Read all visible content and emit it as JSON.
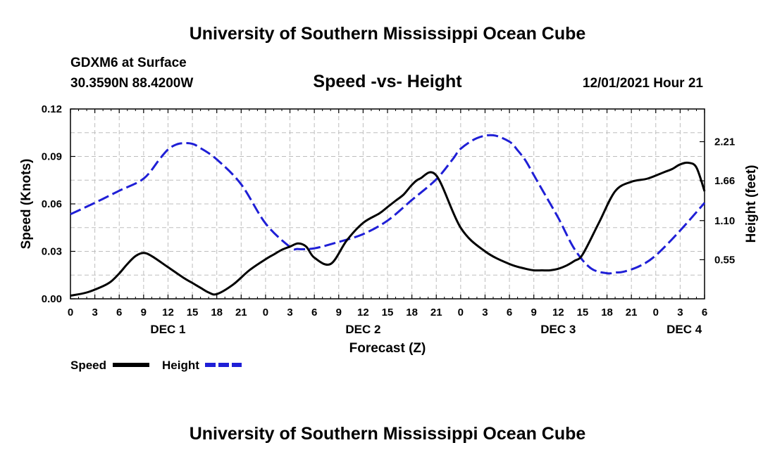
{
  "chart_data": {
    "type": "line",
    "title": "University of Southern Mississippi Ocean Cube",
    "subtitle": "Speed -vs- Height",
    "station": "GDXM6 at Surface",
    "location": "30.3590N  88.4200W",
    "datetime": "12/01/2021 Hour 21",
    "footer_title": "University of Southern Mississippi Ocean Cube",
    "xlabel": "Forecast (Z)",
    "ylabel_left": "Speed (Knots)",
    "ylabel_right": "Height (feet)",
    "xlim": [
      0,
      78
    ],
    "ylim_left": [
      0,
      0.12
    ],
    "ylim_right": [
      0,
      2.67
    ],
    "grid": true,
    "x_tick_labels": [
      "0",
      "3",
      "6",
      "9",
      "12",
      "15",
      "18",
      "21",
      "0",
      "3",
      "6",
      "9",
      "12",
      "15",
      "18",
      "21",
      "0",
      "3",
      "6",
      "9",
      "12",
      "15",
      "18",
      "21",
      "0",
      "3",
      "6"
    ],
    "y_left_ticks": [
      {
        "value": 0,
        "label": "0.00"
      },
      {
        "value": 0.03,
        "label": "0.03"
      },
      {
        "value": 0.06,
        "label": "0.06"
      },
      {
        "value": 0.09,
        "label": "0.09"
      },
      {
        "value": 0.12,
        "label": "0.12"
      }
    ],
    "y_right_ticks": [
      {
        "value": 0.55,
        "label": "0.55"
      },
      {
        "value": 1.1,
        "label": "1.10"
      },
      {
        "value": 1.66,
        "label": "1.66"
      },
      {
        "value": 2.21,
        "label": "2.21"
      }
    ],
    "day_labels": [
      {
        "label": "DEC 1",
        "x": 12
      },
      {
        "label": "DEC 2",
        "x": 36
      },
      {
        "label": "DEC 3",
        "x": 60
      },
      {
        "label": "DEC 4",
        "x": 75.5
      }
    ],
    "legend_position": "bottom-left",
    "series": [
      {
        "name": "Speed",
        "axis": "left",
        "color": "#000000",
        "style": "solid",
        "x": [
          0,
          2,
          4,
          5,
          6,
          7,
          8,
          9,
          10,
          12,
          14,
          15,
          16,
          17,
          18,
          20,
          22,
          24,
          25,
          26,
          27,
          28,
          29,
          30,
          32,
          34,
          36,
          38,
          39,
          40,
          41,
          42,
          43,
          45,
          48,
          51,
          54,
          56,
          57,
          58,
          59,
          60,
          61,
          62,
          63,
          65,
          67,
          69,
          71,
          73,
          74,
          75,
          76,
          77,
          78
        ],
        "values": [
          0.002,
          0.004,
          0.008,
          0.011,
          0.016,
          0.022,
          0.027,
          0.029,
          0.027,
          0.02,
          0.013,
          0.01,
          0.007,
          0.004,
          0.003,
          0.009,
          0.018,
          0.025,
          0.028,
          0.031,
          0.033,
          0.035,
          0.033,
          0.026,
          0.022,
          0.037,
          0.048,
          0.054,
          0.058,
          0.062,
          0.066,
          0.072,
          0.076,
          0.078,
          0.045,
          0.03,
          0.022,
          0.019,
          0.018,
          0.018,
          0.018,
          0.019,
          0.021,
          0.024,
          0.028,
          0.048,
          0.068,
          0.074,
          0.076,
          0.08,
          0.082,
          0.085,
          0.086,
          0.083,
          0.068
        ]
      },
      {
        "name": "Height",
        "axis": "right",
        "color": "#1f1fd6",
        "style": "dashed",
        "x": [
          0,
          3,
          6,
          9,
          11,
          12,
          13,
          14,
          15,
          16,
          18,
          21,
          24,
          27,
          28,
          30,
          33,
          36,
          39,
          42,
          45,
          47,
          48,
          50,
          52,
          54,
          55,
          56,
          57,
          58,
          60,
          62,
          64,
          66,
          67,
          68,
          70,
          72,
          75,
          78
        ],
        "values": [
          1.19,
          1.35,
          1.52,
          1.69,
          1.97,
          2.1,
          2.17,
          2.19,
          2.18,
          2.12,
          1.96,
          1.61,
          1.06,
          0.73,
          0.7,
          0.71,
          0.8,
          0.91,
          1.1,
          1.39,
          1.68,
          1.96,
          2.11,
          2.26,
          2.3,
          2.21,
          2.09,
          1.94,
          1.74,
          1.54,
          1.14,
          0.7,
          0.43,
          0.36,
          0.37,
          0.38,
          0.46,
          0.61,
          0.96,
          1.35
        ]
      }
    ]
  }
}
